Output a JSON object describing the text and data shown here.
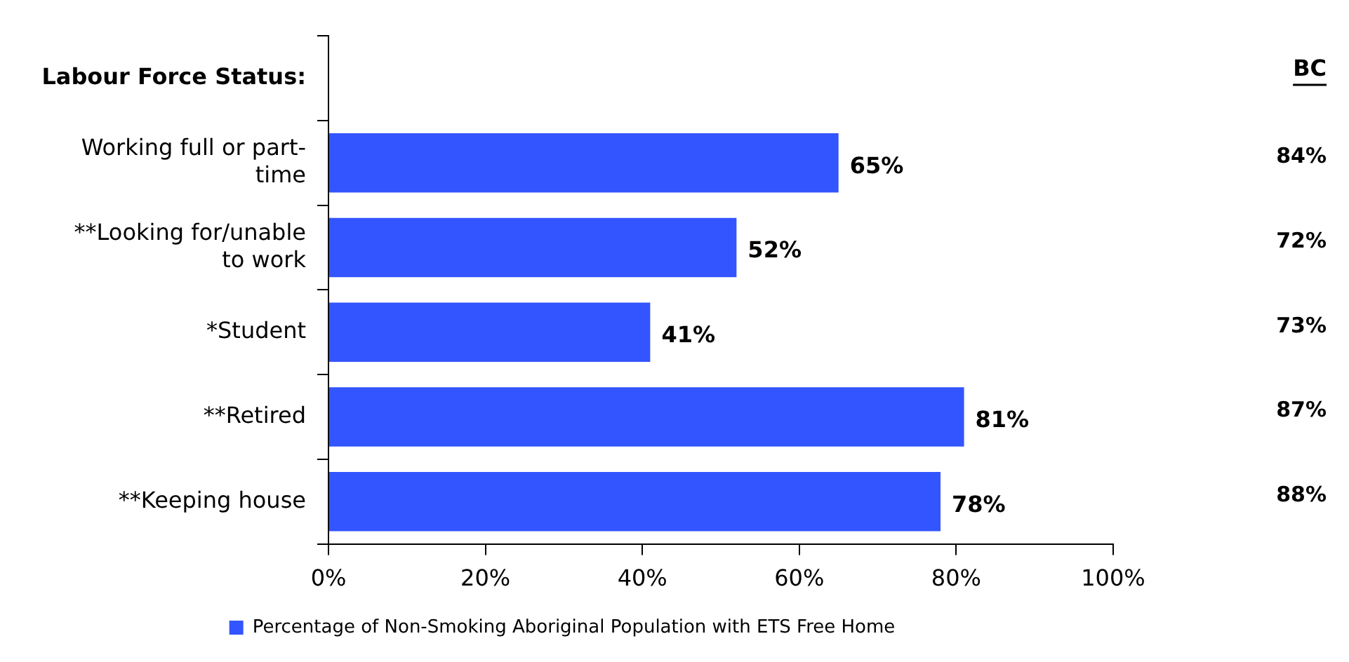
{
  "chart_data": {
    "type": "bar",
    "orientation": "horizontal",
    "ylabel": "Labour Force Status:",
    "categories": [
      null,
      "Working full or part-time",
      "**Looking for/unable to work",
      "*Student",
      "**Retired",
      "**Keeping house"
    ],
    "series": [
      {
        "name": "Percentage of Non-Smoking Aboriginal Population with ETS Free Home",
        "color": "#3355ff",
        "values": [
          null,
          65,
          52,
          41,
          81,
          78
        ],
        "value_labels": [
          null,
          "65%",
          "52%",
          "41%",
          "81%",
          "78%"
        ]
      }
    ],
    "xlim": [
      0,
      100
    ],
    "xticks": [
      {
        "value": 0,
        "label": "0%"
      },
      {
        "value": 20,
        "label": "20%"
      },
      {
        "value": 40,
        "label": "40%"
      },
      {
        "value": 60,
        "label": "60%"
      },
      {
        "value": 80,
        "label": "80%"
      },
      {
        "value": 100,
        "label": "100%"
      }
    ],
    "grid": false,
    "legend": "bottom",
    "annotations": [
      "BC",
      "84%",
      "72%",
      "73%",
      "87%",
      "88%"
    ]
  }
}
